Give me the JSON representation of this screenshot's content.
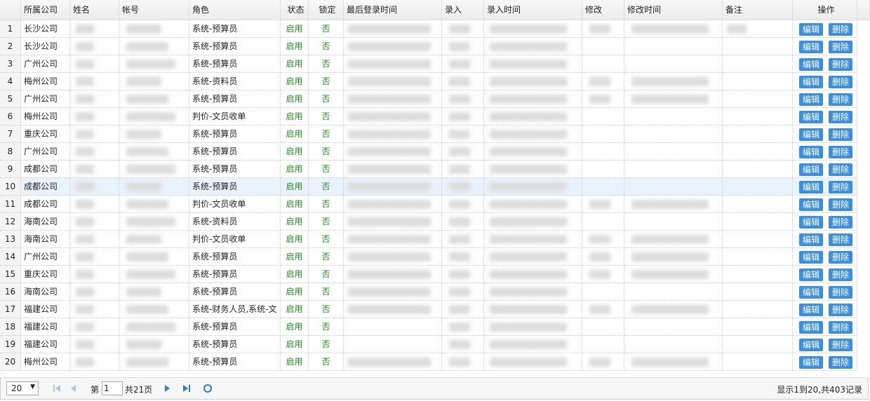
{
  "columns": [
    "所属公司",
    "姓名",
    "帐号",
    "角色",
    "状态",
    "锁定",
    "最后登录时间",
    "录入",
    "录入时间",
    "修改",
    "修改时间",
    "备注",
    "操作"
  ],
  "rows": [
    {
      "num": "1",
      "company": "长沙公司",
      "role": "系统-预算员",
      "status": "启用",
      "locked": "否"
    },
    {
      "num": "2",
      "company": "长沙公司",
      "role": "系统-预算员",
      "status": "启用",
      "locked": "否"
    },
    {
      "num": "3",
      "company": "广州公司",
      "role": "系统-预算员",
      "status": "启用",
      "locked": "否"
    },
    {
      "num": "4",
      "company": "梅州公司",
      "role": "系统-资料员",
      "status": "启用",
      "locked": "否"
    },
    {
      "num": "5",
      "company": "广州公司",
      "role": "系统-预算员",
      "status": "启用",
      "locked": "否"
    },
    {
      "num": "6",
      "company": "梅州公司",
      "role": "判价-文员收单",
      "status": "启用",
      "locked": "否"
    },
    {
      "num": "7",
      "company": "重庆公司",
      "role": "系统-预算员",
      "status": "启用",
      "locked": "否"
    },
    {
      "num": "8",
      "company": "广州公司",
      "role": "系统-预算员",
      "status": "启用",
      "locked": "否"
    },
    {
      "num": "9",
      "company": "成都公司",
      "role": "系统-预算员",
      "status": "启用",
      "locked": "否"
    },
    {
      "num": "10",
      "company": "成都公司",
      "role": "系统-预算员",
      "status": "启用",
      "locked": "否"
    },
    {
      "num": "11",
      "company": "成都公司",
      "role": "判价-文员收单",
      "status": "启用",
      "locked": "否"
    },
    {
      "num": "12",
      "company": "海南公司",
      "role": "系统-资料员",
      "status": "启用",
      "locked": "否"
    },
    {
      "num": "13",
      "company": "海南公司",
      "role": "判价-文员收单",
      "status": "启用",
      "locked": "否"
    },
    {
      "num": "14",
      "company": "广州公司",
      "role": "系统-预算员",
      "status": "启用",
      "locked": "否"
    },
    {
      "num": "15",
      "company": "重庆公司",
      "role": "系统-预算员",
      "status": "启用",
      "locked": "否"
    },
    {
      "num": "16",
      "company": "海南公司",
      "role": "系统-预算员",
      "status": "启用",
      "locked": "否"
    },
    {
      "num": "17",
      "company": "福建公司",
      "role": "系统-财务人员,系统-文",
      "status": "启用",
      "locked": "否"
    },
    {
      "num": "18",
      "company": "福建公司",
      "role": "系统-预算员",
      "status": "启用",
      "locked": "否"
    },
    {
      "num": "19",
      "company": "福建公司",
      "role": "系统-预算员",
      "status": "启用",
      "locked": "否"
    },
    {
      "num": "20",
      "company": "梅州公司",
      "role": "系统-预算员",
      "status": "启用",
      "locked": "否"
    }
  ],
  "actions": [
    "编辑",
    "删除"
  ],
  "pager": {
    "page_size": "20",
    "page_prefix": "第",
    "page": "1",
    "page_total": "共21页",
    "summary": "显示1到20,共403记录"
  }
}
